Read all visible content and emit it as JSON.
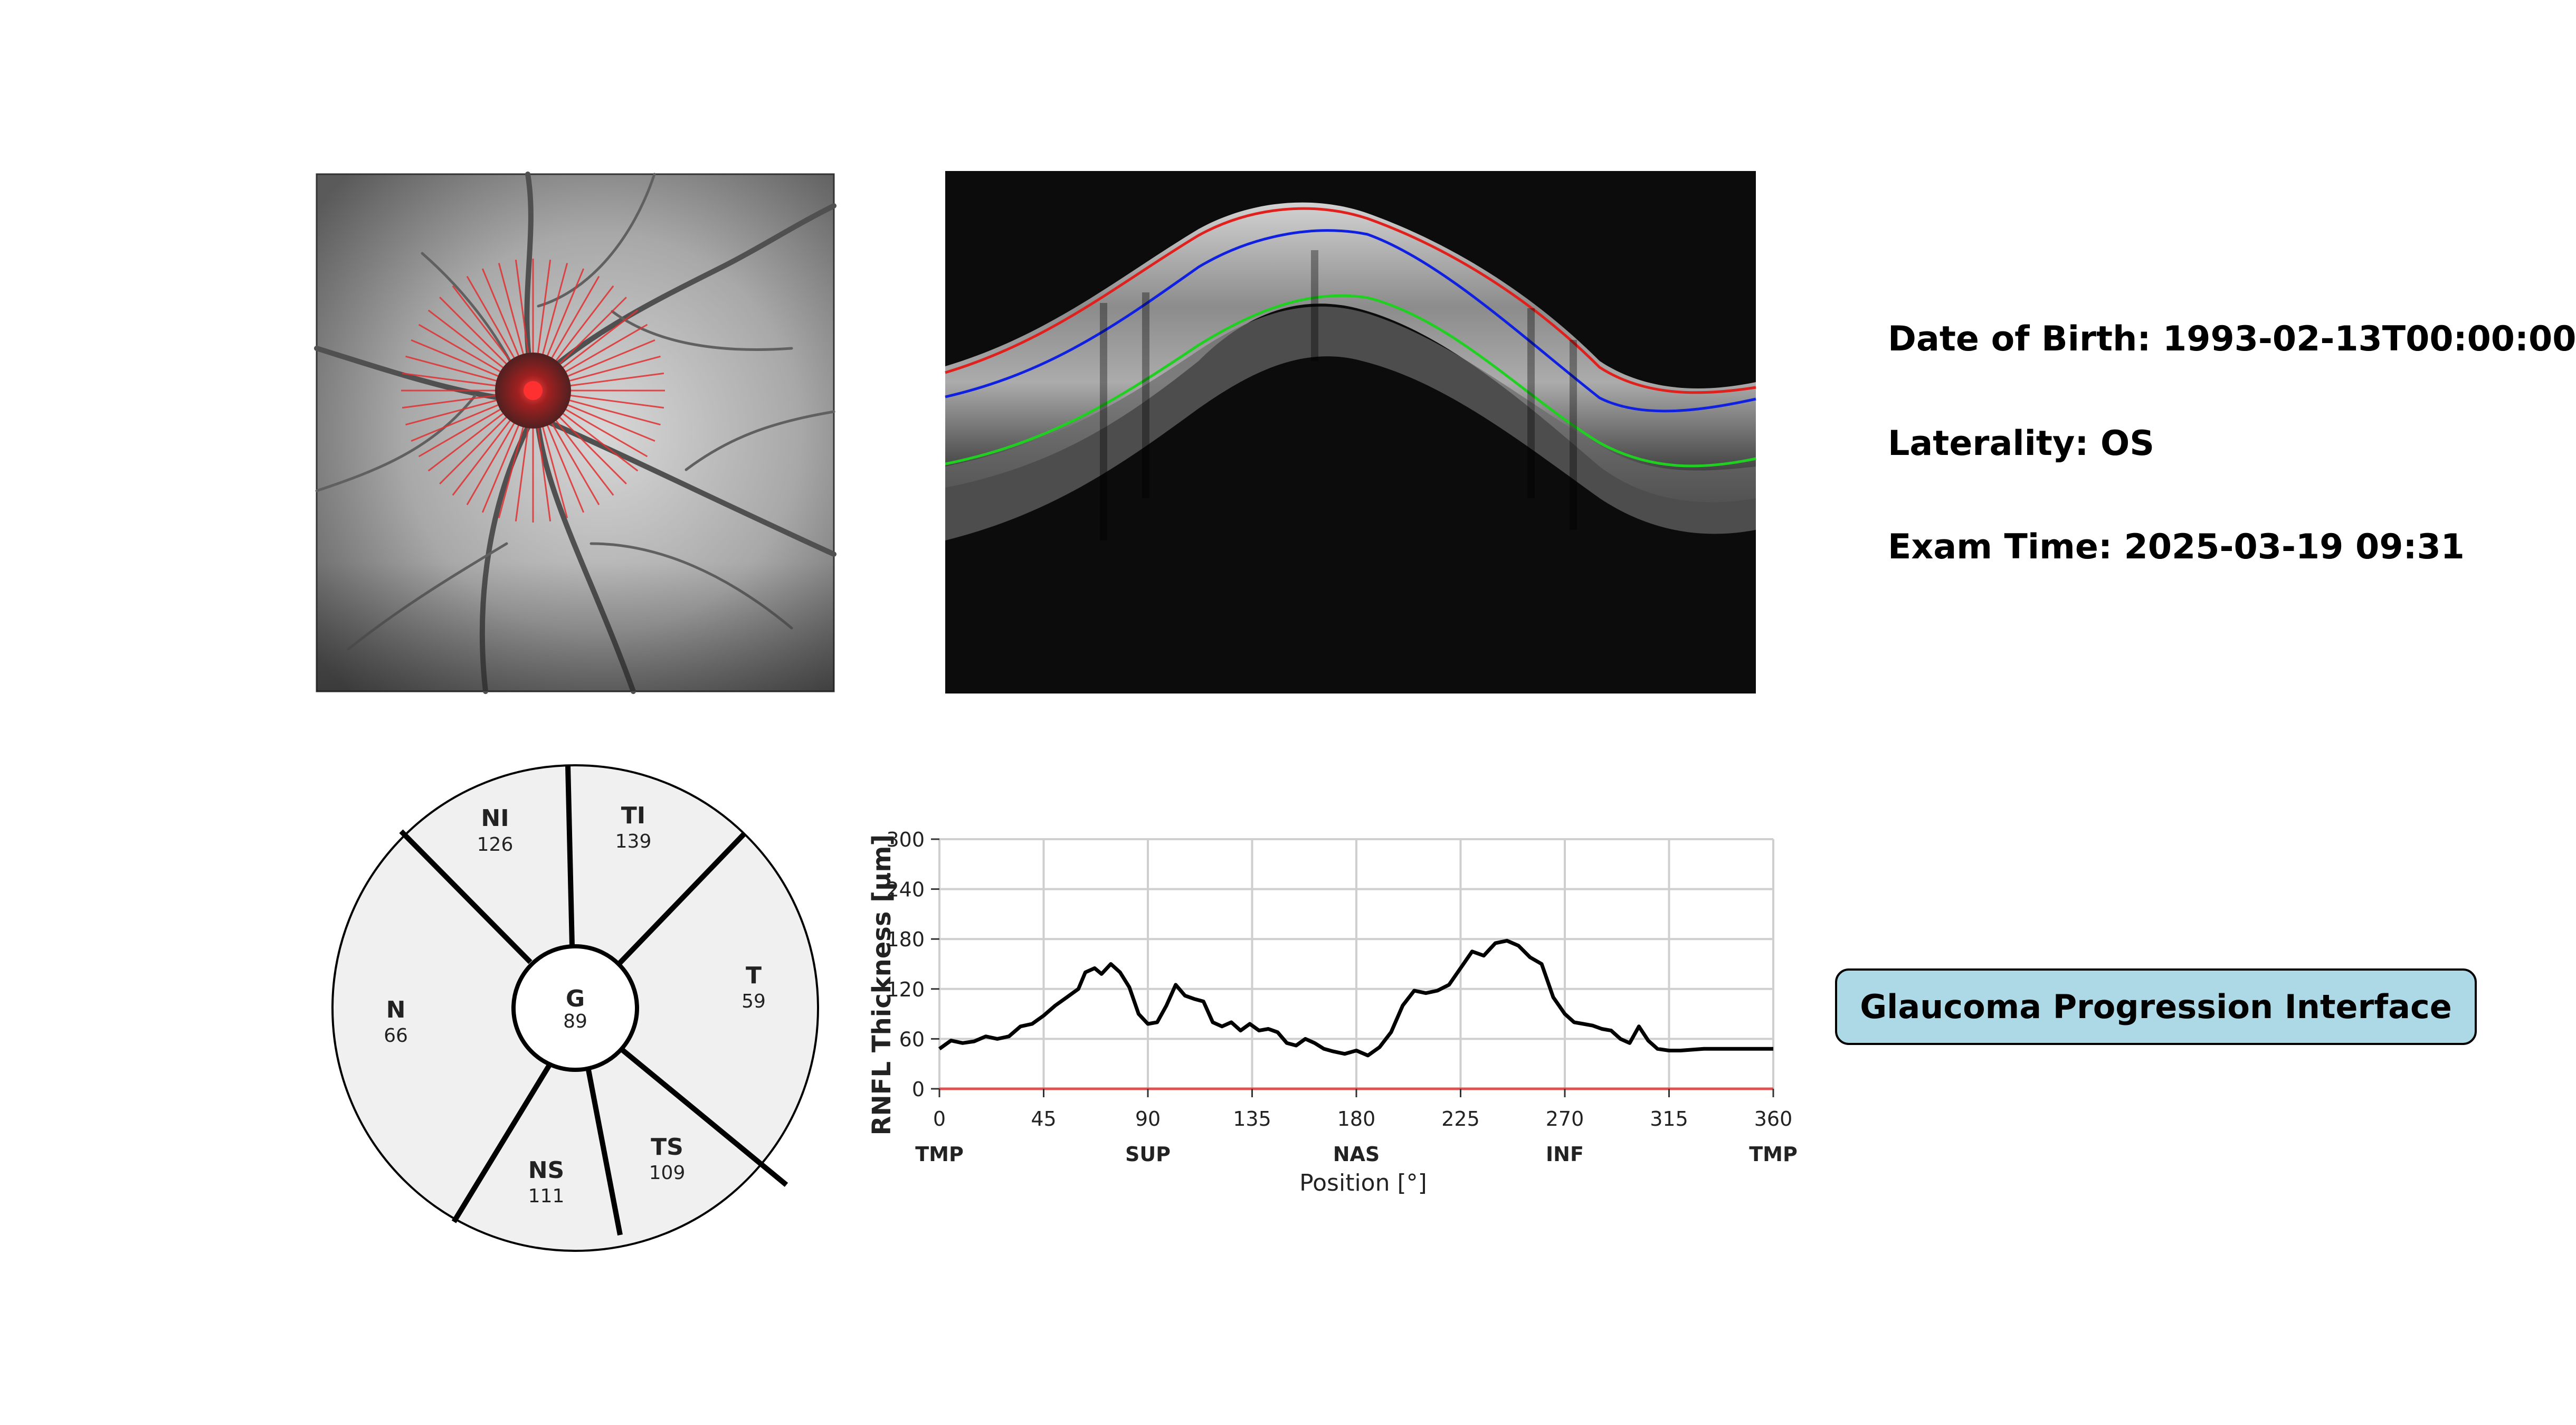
{
  "patient": {
    "dob_label": "Date of Birth: 1993-02-13T00:00:00",
    "laterality_label": "Laterality: OS",
    "exam_time_label": "Exam Time: 2025-03-19 09:31"
  },
  "action": {
    "glaucoma_button_label": "Glaucoma Progression Interface"
  },
  "fundus": {
    "icon": "optic-disc-fundus-image"
  },
  "bscan": {
    "icon": "oct-circular-bscan-image",
    "layer_colors": {
      "ilm": "#e0201c",
      "rnfl": "#1020e0",
      "rpe": "#20d020"
    }
  },
  "sectors": [
    {
      "abbr": "NI",
      "value": "126"
    },
    {
      "abbr": "TI",
      "value": "139"
    },
    {
      "abbr": "T",
      "value": "59"
    },
    {
      "abbr": "TS",
      "value": "109"
    },
    {
      "abbr": "NS",
      "value": "111"
    },
    {
      "abbr": "N",
      "value": "66"
    },
    {
      "abbr": "G",
      "value": "89"
    }
  ],
  "chart_data": {
    "type": "line",
    "xlabel": "Position [°]",
    "ylabel": "RNFL Thickness [µm]",
    "xlim": [
      0,
      360
    ],
    "ylim": [
      0,
      300
    ],
    "x_ticks": [
      "0",
      "45",
      "90",
      "135",
      "180",
      "225",
      "270",
      "315",
      "360"
    ],
    "y_ticks": [
      "0",
      "60",
      "120",
      "180",
      "240",
      "300"
    ],
    "region_labels": [
      "TMP",
      "SUP",
      "NAS",
      "INF",
      "TMP"
    ],
    "grid": true,
    "baseline": {
      "y": 0,
      "color": "#e05050"
    },
    "series": [
      {
        "color": "#000000",
        "x": [
          0,
          5,
          10,
          15,
          20,
          25,
          30,
          35,
          40,
          45,
          50,
          55,
          60,
          63,
          67,
          70,
          74,
          78,
          82,
          86,
          90,
          94,
          98,
          102,
          106,
          110,
          114,
          118,
          122,
          126,
          130,
          134,
          138,
          142,
          146,
          150,
          154,
          158,
          162,
          166,
          170,
          175,
          180,
          185,
          190,
          195,
          200,
          205,
          210,
          215,
          220,
          225,
          230,
          235,
          240,
          245,
          250,
          255,
          260,
          265,
          270,
          274,
          278,
          282,
          286,
          290,
          294,
          298,
          302,
          306,
          310,
          315,
          320,
          325,
          330,
          333,
          336,
          340,
          345,
          350,
          355,
          360
        ],
        "y": [
          48,
          58,
          55,
          57,
          63,
          60,
          63,
          75,
          78,
          88,
          100,
          110,
          120,
          140,
          145,
          138,
          150,
          140,
          122,
          90,
          78,
          80,
          100,
          125,
          112,
          108,
          105,
          80,
          75,
          80,
          70,
          78,
          70,
          72,
          68,
          55,
          52,
          60,
          55,
          48,
          45,
          42,
          46,
          40,
          50,
          68,
          100,
          118,
          115,
          118,
          125,
          145,
          165,
          160,
          175,
          178,
          172,
          158,
          150,
          110,
          90,
          80,
          78,
          76,
          72,
          70,
          60,
          55,
          75,
          58,
          48,
          46,
          46,
          47,
          48,
          48,
          48,
          48,
          48,
          48,
          48,
          48
        ]
      }
    ]
  }
}
